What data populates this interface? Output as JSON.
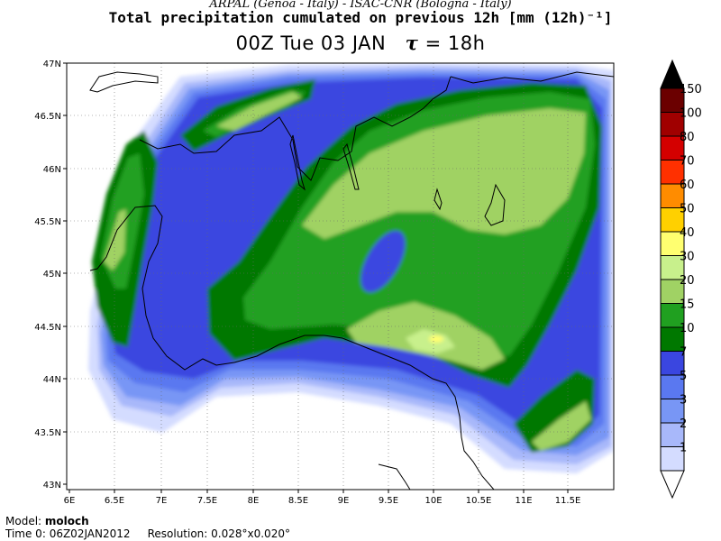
{
  "header": {
    "institutions": "ARPAL (Genoa - Italy)  -  ISAC-CNR (Bologna - Italy)",
    "title": "Total precipitation cumulated on previous 12h [mm (12h)⁻¹]",
    "time_prefix": "00Z Tue 03 JAN",
    "tau_symbol": "τ",
    "tau_value": "= 18h"
  },
  "map": {
    "lat_labels": [
      "47N",
      "46.5N",
      "46N",
      "45.5N",
      "45N",
      "44.5N",
      "44N",
      "43.5N",
      "43N"
    ],
    "lon_labels": [
      "6E",
      "6.5E",
      "7E",
      "7.5E",
      "8E",
      "8.5E",
      "9E",
      "9.5E",
      "10E",
      "10.5E",
      "11E",
      "11.5E"
    ],
    "field": "precipitation-12h"
  },
  "colorbar": {
    "labels": [
      "150",
      "100",
      "80",
      "70",
      "60",
      "50",
      "40",
      "30",
      "20",
      "15",
      "10",
      "7",
      "5",
      "3",
      "2",
      "1"
    ],
    "colors": [
      "#000000",
      "#6b0000",
      "#a00000",
      "#d40000",
      "#ff3000",
      "#ff8c00",
      "#ffd000",
      "#ffff70",
      "#c8f08c",
      "#a0d264",
      "#20a020",
      "#007800",
      "#3a46e0",
      "#5a78f0",
      "#7896f5",
      "#a8b8fa",
      "#d4dcff",
      "#ffffff"
    ]
  },
  "footer": {
    "model_label": "Model:",
    "model_value": "moloch",
    "time0_label": "Time 0:",
    "time0_value": "06Z02JAN2012",
    "resolution_label": "Resolution:",
    "resolution_value": "0.028°x0.020°"
  }
}
